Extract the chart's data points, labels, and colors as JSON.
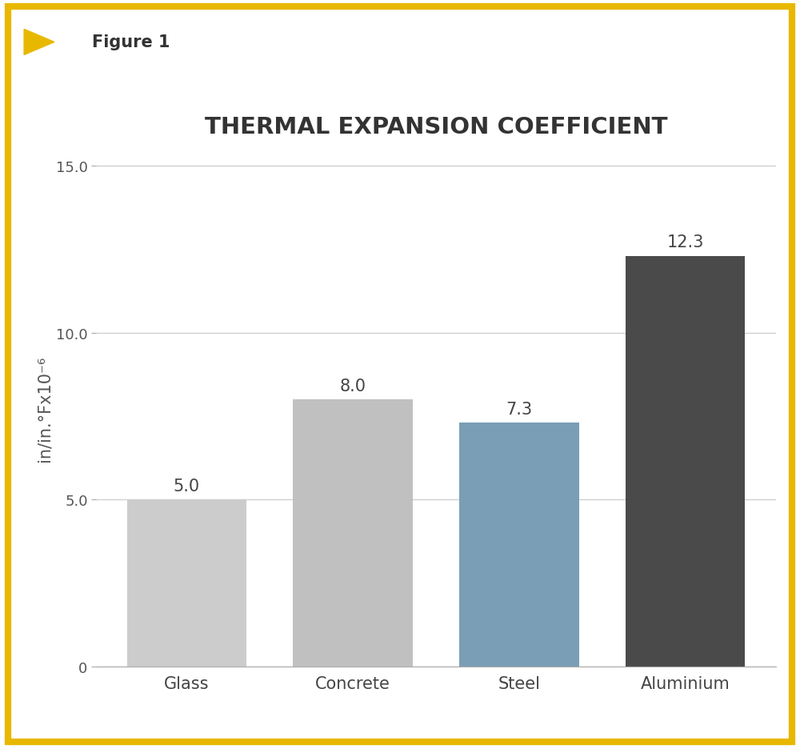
{
  "categories": [
    "Glass",
    "Concrete",
    "Steel",
    "Aluminium"
  ],
  "values": [
    5.0,
    8.0,
    7.3,
    12.3
  ],
  "bar_colors": [
    "#cccccc",
    "#c0c0c0",
    "#7a9eb5",
    "#4a4a4a"
  ],
  "title": "THERMAL EXPANSION COEFFICIENT",
  "ylabel": "in/in.°Fx10⁻⁶",
  "ylim": [
    0,
    15.5
  ],
  "yticks": [
    0,
    5.0,
    10.0,
    15.0
  ],
  "ytick_labels": [
    "0",
    "5.0",
    "10.0",
    "15.0"
  ],
  "figure1_label": "Figure 1",
  "border_color": "#e8b800",
  "background_color": "#ffffff",
  "title_fontsize": 21,
  "ylabel_fontsize": 15,
  "tick_fontsize": 13,
  "bar_label_fontsize": 15,
  "category_fontsize": 15,
  "figure1_fontsize": 15,
  "grid_color": "#d0d0d0",
  "grid_linewidth": 1.0,
  "bar_width": 0.72
}
